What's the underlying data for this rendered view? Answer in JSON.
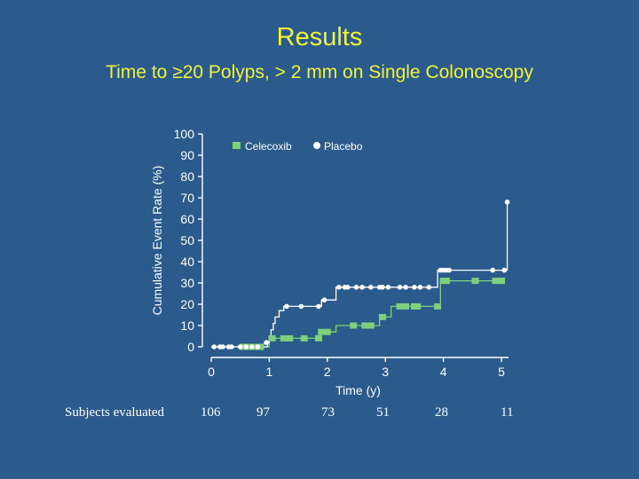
{
  "slide": {
    "title": "Results",
    "subtitle": "Time to ≥20 Polyps, > 2 mm on Single Colonoscopy"
  },
  "colors": {
    "background": "#2a5b8c",
    "title": "#f2f238",
    "celecoxib": "#7fd07c",
    "placebo": "#ffffff",
    "axis": "#ffffff"
  },
  "chart_data": {
    "type": "line",
    "step": true,
    "title": "",
    "xlabel": "Time (y)",
    "ylabel": "Cumulative Event Rate (%)",
    "xlim": [
      0,
      5
    ],
    "ylim": [
      0,
      100
    ],
    "xticks": [
      0,
      1,
      2,
      3,
      4,
      5
    ],
    "yticks": [
      0,
      10,
      20,
      30,
      40,
      50,
      60,
      70,
      80,
      90,
      100
    ],
    "legend_position": "top",
    "series": [
      {
        "name": "Celecoxib",
        "marker": "square",
        "color": "#7fd07c",
        "steps": [
          [
            0,
            0
          ],
          [
            1.0,
            4
          ],
          [
            1.85,
            7
          ],
          [
            2.15,
            10
          ],
          [
            2.9,
            14
          ],
          [
            3.1,
            19
          ],
          [
            3.95,
            31
          ],
          [
            5.0,
            31
          ]
        ],
        "markers": [
          [
            0.55,
            0
          ],
          [
            0.65,
            0
          ],
          [
            0.75,
            0
          ],
          [
            0.85,
            0
          ],
          [
            1.05,
            4
          ],
          [
            1.25,
            4
          ],
          [
            1.35,
            4
          ],
          [
            1.6,
            4
          ],
          [
            1.85,
            4
          ],
          [
            1.9,
            7
          ],
          [
            2.0,
            7
          ],
          [
            2.45,
            10
          ],
          [
            2.65,
            10
          ],
          [
            2.75,
            10
          ],
          [
            2.95,
            14
          ],
          [
            3.25,
            19
          ],
          [
            3.35,
            19
          ],
          [
            3.5,
            19
          ],
          [
            3.55,
            19
          ],
          [
            3.9,
            19
          ],
          [
            4.0,
            31
          ],
          [
            4.05,
            31
          ],
          [
            4.55,
            31
          ],
          [
            4.9,
            31
          ],
          [
            5.0,
            31
          ]
        ]
      },
      {
        "name": "Placebo",
        "marker": "circle",
        "color": "#ffffff",
        "steps": [
          [
            0,
            0
          ],
          [
            0.97,
            2
          ],
          [
            1.0,
            5
          ],
          [
            1.03,
            8
          ],
          [
            1.07,
            11
          ],
          [
            1.1,
            14
          ],
          [
            1.17,
            17
          ],
          [
            1.25,
            19
          ],
          [
            1.9,
            22
          ],
          [
            2.15,
            28
          ],
          [
            3.9,
            36
          ],
          [
            5.1,
            36
          ],
          [
            5.1,
            68
          ]
        ],
        "markers": [
          [
            0.05,
            0
          ],
          [
            0.15,
            0
          ],
          [
            0.2,
            0
          ],
          [
            0.3,
            0
          ],
          [
            0.35,
            0
          ],
          [
            0.5,
            0
          ],
          [
            0.6,
            0
          ],
          [
            0.7,
            0
          ],
          [
            0.8,
            0
          ],
          [
            0.95,
            2
          ],
          [
            1.3,
            19
          ],
          [
            1.55,
            19
          ],
          [
            1.85,
            19
          ],
          [
            1.95,
            22
          ],
          [
            2.2,
            28
          ],
          [
            2.3,
            28
          ],
          [
            2.35,
            28
          ],
          [
            2.5,
            28
          ],
          [
            2.6,
            28
          ],
          [
            2.75,
            28
          ],
          [
            2.9,
            28
          ],
          [
            2.95,
            28
          ],
          [
            3.05,
            28
          ],
          [
            3.25,
            28
          ],
          [
            3.35,
            28
          ],
          [
            3.5,
            28
          ],
          [
            3.6,
            28
          ],
          [
            3.75,
            28
          ],
          [
            3.95,
            36
          ],
          [
            4.0,
            36
          ],
          [
            4.05,
            36
          ],
          [
            4.1,
            36
          ],
          [
            4.85,
            36
          ],
          [
            5.05,
            36
          ],
          [
            5.1,
            68
          ]
        ]
      }
    ]
  },
  "subjects": {
    "label": "Subjects evaluated",
    "counts": [
      "106",
      "97",
      "73",
      "51",
      "28",
      "11"
    ]
  }
}
